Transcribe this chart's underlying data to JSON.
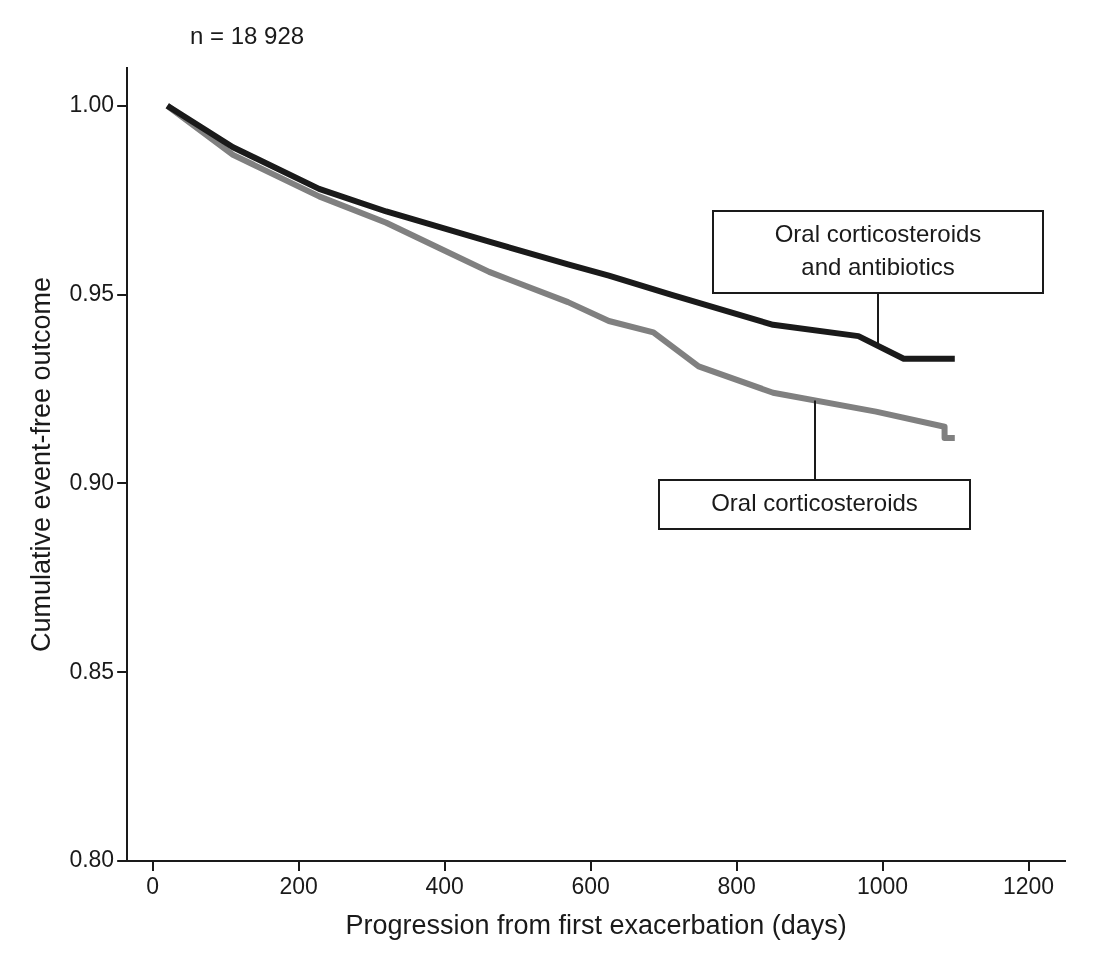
{
  "chart_data": {
    "type": "line",
    "xlabel": "Progression from first exacerbation (days)",
    "ylabel": "Cumulative event-free outcome",
    "annotations": [
      "n = 18 928"
    ],
    "xlim": [
      -35,
      1250
    ],
    "xticks": [
      0,
      200,
      400,
      600,
      800,
      1000,
      1200
    ],
    "ylim": [
      0.8,
      1.01
    ],
    "yticks": [
      {
        "value": 0.8,
        "label": "0.80"
      },
      {
        "value": 0.85,
        "label": "0.85"
      },
      {
        "value": 0.9,
        "label": "0.90"
      },
      {
        "value": 0.95,
        "label": "0.95"
      },
      {
        "value": 1,
        "label": "1.00"
      }
    ],
    "grid": false,
    "legend": false,
    "marker": "none",
    "line_style": "solid",
    "series": [
      {
        "name": "Oral corticosteroids and antibiotics",
        "color": "#1a1a1a",
        "x": [
          20,
          110,
          228,
          320,
          461,
          569,
          625,
          710,
          850,
          967,
          1029,
          1099
        ],
        "values": [
          1.0,
          0.989,
          0.978,
          0.972,
          0.964,
          0.958,
          0.955,
          0.95,
          0.942,
          0.939,
          0.933,
          0.933
        ]
      },
      {
        "name": "Oral corticosteroids",
        "color": "#808080",
        "x": [
          20,
          110,
          228,
          320,
          461,
          569,
          625,
          686,
          748,
          850,
          991,
          1085,
          1085,
          1099
        ],
        "values": [
          1.0,
          0.987,
          0.976,
          0.969,
          0.956,
          0.948,
          0.943,
          0.94,
          0.931,
          0.924,
          0.919,
          0.915,
          0.912,
          0.912
        ]
      }
    ]
  }
}
